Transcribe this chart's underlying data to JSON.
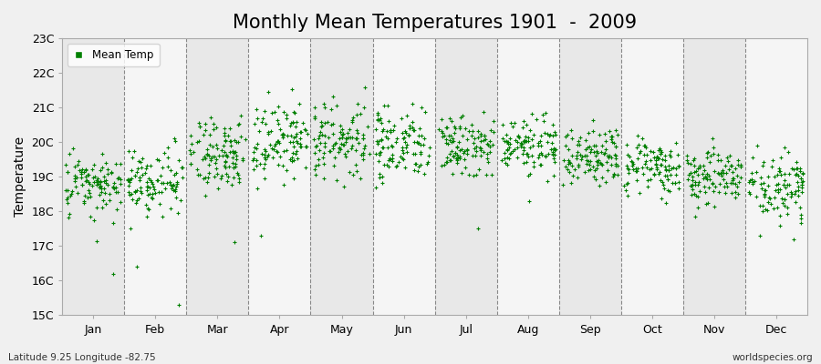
{
  "title": "Monthly Mean Temperatures 1901  -  2009",
  "ylabel": "Temperature",
  "legend_label": "Mean Temp",
  "subtitle": "Latitude 9.25 Longitude -82.75",
  "watermark": "worldspecies.org",
  "ylim": [
    15,
    23
  ],
  "yticks": [
    15,
    16,
    17,
    18,
    19,
    20,
    21,
    22,
    23
  ],
  "ytick_labels": [
    "15C",
    "16C",
    "17C",
    "18C",
    "19C",
    "20C",
    "21C",
    "22C",
    "23C"
  ],
  "months": [
    "Jan",
    "Feb",
    "Mar",
    "Apr",
    "May",
    "Jun",
    "Jul",
    "Aug",
    "Sep",
    "Oct",
    "Nov",
    "Dec"
  ],
  "month_means": [
    18.75,
    18.75,
    19.6,
    20.0,
    20.1,
    19.95,
    19.9,
    19.85,
    19.6,
    19.35,
    19.0,
    18.7
  ],
  "month_stds": [
    0.45,
    0.52,
    0.55,
    0.55,
    0.55,
    0.5,
    0.45,
    0.42,
    0.4,
    0.42,
    0.42,
    0.42
  ],
  "n_years": 109,
  "dot_color": "#008000",
  "dot_size": 6,
  "bg_color": "#f0f0f0",
  "plot_bg_color": "#f0f0f0",
  "band_color_odd": "#e8e8e8",
  "band_color_even": "#f5f5f5",
  "grid_color": "#888888",
  "title_fontsize": 15,
  "axis_fontsize": 10,
  "tick_fontsize": 9
}
